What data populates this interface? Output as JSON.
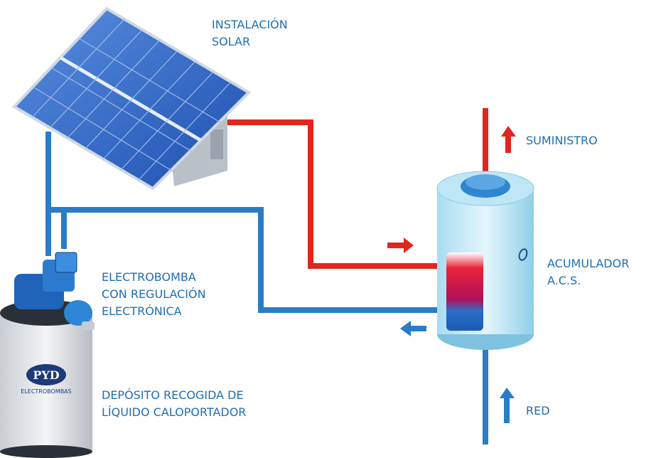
{
  "labels": {
    "solar": [
      "INSTALACIÓN",
      "SOLAR"
    ],
    "supply": [
      "SUMINISTRO"
    ],
    "tank": [
      "ACUMULADOR",
      "A.C.S."
    ],
    "pump": [
      "ELECTROBOMBA",
      "CON REGULACIÓN",
      "ELECTRÓNICA"
    ],
    "deposit": [
      "DEPÓSITO RECOGIDA DE",
      "LÍQUIDO CALOPORTADOR"
    ],
    "grid": [
      "RED"
    ]
  },
  "logo": {
    "brand": "PYD",
    "subtitle": "ELECTROBOMBAS"
  }
}
